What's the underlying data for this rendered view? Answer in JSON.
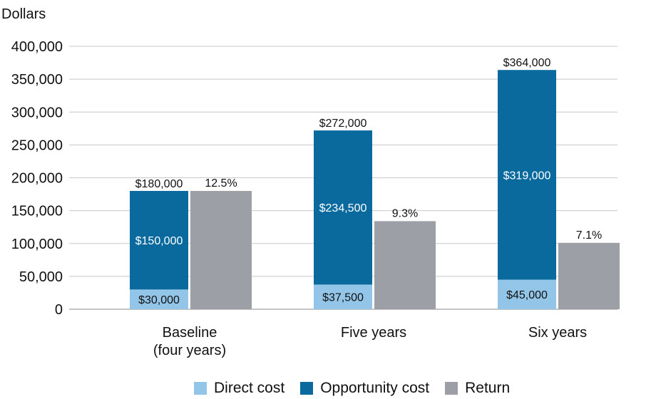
{
  "chart_data": {
    "type": "bar",
    "ylabel": "Dollars",
    "ylim": [
      0,
      400000
    ],
    "yticks": [
      0,
      50000,
      100000,
      150000,
      200000,
      250000,
      300000,
      350000,
      400000
    ],
    "ytick_labels": [
      "0",
      "50,000",
      "100,000",
      "150,000",
      "200,000",
      "250,000",
      "300,000",
      "350,000",
      "400,000"
    ],
    "grid": true,
    "legend_position": "bottom",
    "categories": [
      {
        "line1": "Baseline",
        "line2": "(four years)"
      },
      {
        "line1": "Five years",
        "line2": ""
      },
      {
        "line1": "Six years",
        "line2": ""
      }
    ],
    "stacked_series": [
      {
        "name": "Direct cost",
        "color": "#92c5e8",
        "values": [
          30000,
          37500,
          45000
        ],
        "labels": [
          "$30,000",
          "$37,500",
          "$45,000"
        ]
      },
      {
        "name": "Opportunity cost",
        "color": "#0a6a9e",
        "values": [
          150000,
          234500,
          319000
        ],
        "labels": [
          "$150,000",
          "$234,500",
          "$319,000"
        ]
      }
    ],
    "stack_totals": [
      "$180,000",
      "$272,000",
      "$364,000"
    ],
    "return_series": {
      "name": "Return",
      "color": "#9c9fa6",
      "values": [
        180000,
        134000,
        101000
      ],
      "labels": [
        "12.5%",
        "9.3%",
        "7.1%"
      ]
    }
  },
  "legend": [
    {
      "label": "Direct cost",
      "color": "#92c5e8"
    },
    {
      "label": "Opportunity cost",
      "color": "#0a6a9e"
    },
    {
      "label": "Return",
      "color": "#9c9fa6"
    }
  ]
}
